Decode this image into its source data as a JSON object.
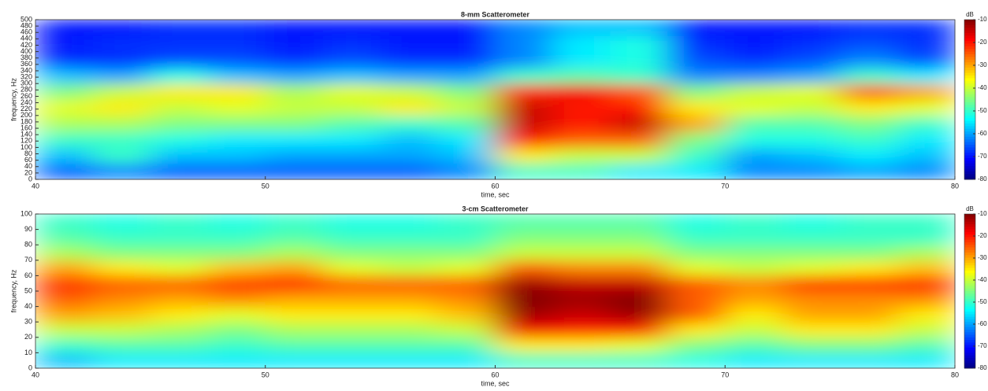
{
  "chart_data": [
    {
      "type": "heatmap",
      "title": "8-mm Scatterometer",
      "xlabel": "time, sec",
      "ylabel": "frequency, Hz",
      "colorbar_label": "dB",
      "colormap": "jet",
      "xlim": [
        40,
        80
      ],
      "xticks": [
        40,
        50,
        60,
        70,
        80
      ],
      "ylim": [
        0,
        500
      ],
      "yticks": [
        0,
        20,
        40,
        60,
        80,
        100,
        120,
        140,
        160,
        180,
        200,
        220,
        240,
        260,
        280,
        300,
        320,
        340,
        360,
        380,
        400,
        420,
        440,
        460,
        480,
        500
      ],
      "clim": [
        -80,
        -10
      ],
      "cticks": [
        -10,
        -20,
        -30,
        -40,
        -50,
        -60,
        -70,
        -80
      ],
      "x": [
        41.25,
        43.75,
        46.25,
        48.75,
        51.25,
        53.75,
        56.25,
        58.75,
        61.25,
        63.75,
        66.25,
        68.75,
        71.25,
        73.75,
        76.25,
        78.75
      ],
      "y": [
        25,
        75,
        125,
        175,
        225,
        275,
        325,
        375,
        425,
        475
      ],
      "z": [
        [
          -65,
          -62,
          -65,
          -65,
          -65,
          -65,
          -65,
          -62,
          -50,
          -50,
          -55,
          -55,
          -62,
          -62,
          -60,
          -62
        ],
        [
          -58,
          -50,
          -58,
          -58,
          -60,
          -60,
          -60,
          -58,
          -35,
          -40,
          -40,
          -50,
          -60,
          -58,
          -55,
          -58
        ],
        [
          -50,
          -50,
          -52,
          -55,
          -55,
          -55,
          -58,
          -55,
          -20,
          -25,
          -25,
          -45,
          -52,
          -52,
          -50,
          -55
        ],
        [
          -42,
          -42,
          -45,
          -45,
          -45,
          -48,
          -50,
          -48,
          -15,
          -20,
          -15,
          -30,
          -48,
          -48,
          -45,
          -50
        ],
        [
          -38,
          -35,
          -40,
          -38,
          -40,
          -40,
          -35,
          -40,
          -15,
          -20,
          -20,
          -35,
          -38,
          -40,
          -35,
          -38
        ],
        [
          -45,
          -40,
          -35,
          -35,
          -42,
          -38,
          -40,
          -45,
          -22,
          -18,
          -25,
          -45,
          -40,
          -38,
          -25,
          -30
        ],
        [
          -58,
          -60,
          -52,
          -58,
          -60,
          -58,
          -60,
          -60,
          -50,
          -48,
          -50,
          -62,
          -62,
          -60,
          -50,
          -55
        ],
        [
          -68,
          -68,
          -66,
          -66,
          -68,
          -66,
          -68,
          -68,
          -62,
          -55,
          -52,
          -66,
          -68,
          -66,
          -62,
          -66
        ],
        [
          -70,
          -68,
          -68,
          -68,
          -70,
          -68,
          -70,
          -70,
          -62,
          -55,
          -52,
          -68,
          -70,
          -68,
          -66,
          -68
        ],
        [
          -70,
          -70,
          -68,
          -68,
          -70,
          -70,
          -70,
          -70,
          -62,
          -58,
          -58,
          -70,
          -70,
          -70,
          -68,
          -68
        ]
      ]
    },
    {
      "type": "heatmap",
      "title": "3-cm Scatterometer",
      "xlabel": "time, sec",
      "ylabel": "frequency, Hz",
      "colorbar_label": "dB",
      "colormap": "jet",
      "xlim": [
        40,
        80
      ],
      "xticks": [
        40,
        50,
        60,
        70,
        80
      ],
      "ylim": [
        0,
        100
      ],
      "yticks": [
        0,
        10,
        20,
        30,
        40,
        50,
        60,
        70,
        80,
        90,
        100
      ],
      "clim": [
        -80,
        -10
      ],
      "cticks": [
        -10,
        -20,
        -30,
        -40,
        -50,
        -60,
        -70,
        -80
      ],
      "x": [
        41.25,
        43.75,
        46.25,
        48.75,
        51.25,
        53.75,
        56.25,
        58.75,
        61.25,
        63.75,
        66.25,
        68.75,
        71.25,
        73.75,
        76.25,
        78.75
      ],
      "y": [
        5,
        15,
        25,
        35,
        45,
        55,
        65,
        75,
        85,
        95
      ],
      "z": [
        [
          -58,
          -55,
          -55,
          -55,
          -55,
          -55,
          -55,
          -55,
          -50,
          -50,
          -50,
          -52,
          -55,
          -55,
          -55,
          -55
        ],
        [
          -50,
          -48,
          -48,
          -50,
          -48,
          -48,
          -48,
          -48,
          -35,
          -35,
          -38,
          -45,
          -48,
          -45,
          -45,
          -48
        ],
        [
          -40,
          -40,
          -42,
          -45,
          -42,
          -42,
          -42,
          -40,
          -18,
          -20,
          -20,
          -35,
          -40,
          -35,
          -35,
          -40
        ],
        [
          -30,
          -32,
          -35,
          -38,
          -35,
          -35,
          -35,
          -32,
          -12,
          -15,
          -12,
          -25,
          -35,
          -30,
          -30,
          -35
        ],
        [
          -25,
          -28,
          -30,
          -28,
          -30,
          -30,
          -30,
          -28,
          -10,
          -12,
          -10,
          -25,
          -30,
          -28,
          -28,
          -28
        ],
        [
          -22,
          -25,
          -25,
          -22,
          -20,
          -25,
          -25,
          -25,
          -12,
          -15,
          -15,
          -25,
          -28,
          -22,
          -22,
          -20
        ],
        [
          -30,
          -35,
          -38,
          -32,
          -30,
          -38,
          -40,
          -38,
          -25,
          -28,
          -28,
          -38,
          -40,
          -38,
          -35,
          -32
        ],
        [
          -42,
          -45,
          -45,
          -45,
          -42,
          -45,
          -45,
          -45,
          -40,
          -40,
          -40,
          -45,
          -45,
          -45,
          -45,
          -42
        ],
        [
          -48,
          -50,
          -50,
          -50,
          -48,
          -50,
          -50,
          -50,
          -45,
          -45,
          -45,
          -50,
          -50,
          -50,
          -50,
          -50
        ],
        [
          -50,
          -52,
          -50,
          -52,
          -50,
          -52,
          -52,
          -50,
          -48,
          -48,
          -48,
          -52,
          -50,
          -52,
          -50,
          -50
        ]
      ]
    }
  ]
}
